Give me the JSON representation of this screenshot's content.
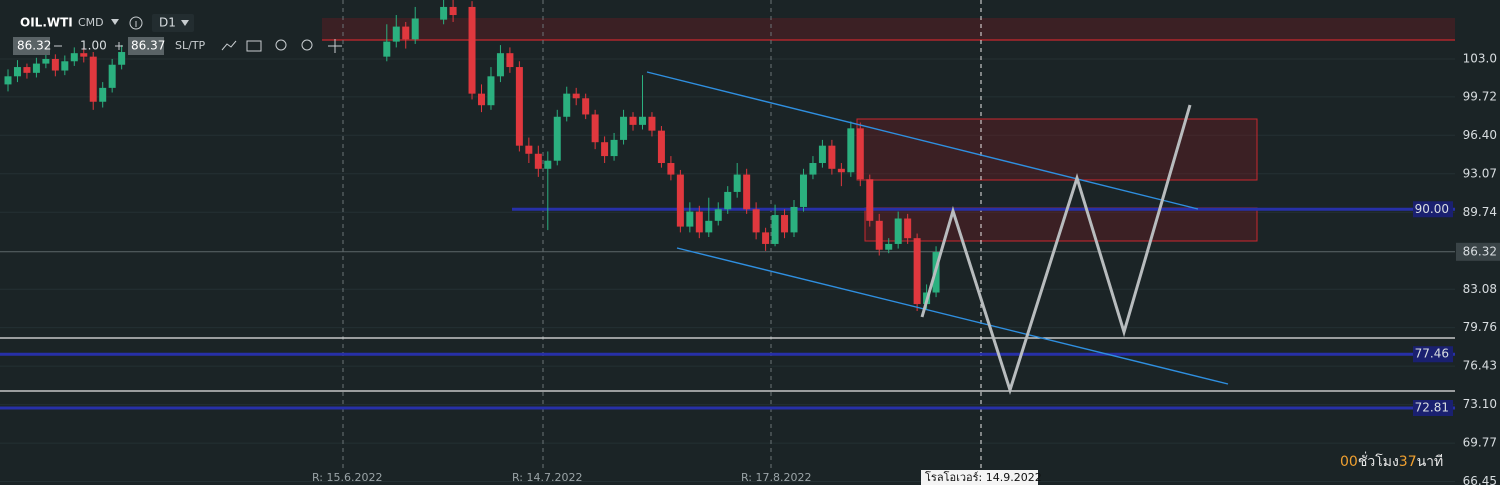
{
  "toolbar": {
    "symbol": "OIL.WTI",
    "market": "CMD",
    "timeframe": "D1",
    "bid": "86.32",
    "volume": "1.00",
    "ask": "86.37",
    "sltp": "SL/TP"
  },
  "chart_data": {
    "type": "candlestick",
    "open": [
      100.8,
      101.5,
      102.3,
      101.8,
      102.6,
      103.0,
      102.0,
      102.8,
      103.5,
      103.2,
      99.3,
      100.5,
      102.5,
      null,
      null,
      null,
      null,
      null,
      null,
      null,
      null,
      null,
      null,
      null,
      null,
      null,
      null,
      null,
      null,
      null,
      null,
      null,
      null,
      null,
      null,
      null,
      null,
      null,
      null,
      null,
      103.2,
      104.5,
      105.8,
      104.7,
      null,
      null,
      106.4,
      107.5,
      null,
      107.5,
      100.0,
      99.0,
      101.5,
      103.5,
      102.3,
      95.5,
      94.8,
      93.5,
      94.2,
      98.0,
      100.0,
      99.6,
      98.2,
      95.8,
      94.6,
      96.0,
      98.0,
      97.3,
      98.0,
      96.8,
      94.0,
      93.0,
      88.5,
      89.8,
      88.0,
      89.0,
      90.0,
      91.5,
      93.0,
      90.0,
      88.0,
      87.0,
      89.5,
      88.0,
      90.2,
      93.0,
      94.0,
      95.5,
      93.5,
      93.2,
      97.0,
      92.6,
      89.0,
      86.5,
      87.0,
      89.2,
      87.5,
      81.8,
      82.8
    ],
    "high": [
      102.1,
      102.9,
      102.6,
      103.1,
      103.6,
      103.4,
      103.3,
      104.0,
      104.0,
      103.6,
      101.0,
      103.0,
      104.2,
      null,
      null,
      null,
      null,
      null,
      null,
      null,
      null,
      null,
      null,
      null,
      null,
      null,
      null,
      null,
      null,
      null,
      null,
      null,
      null,
      null,
      null,
      null,
      null,
      null,
      null,
      null,
      106.0,
      106.8,
      106.2,
      107.5,
      null,
      null,
      108.5,
      108.2,
      null,
      108.0,
      100.8,
      102.3,
      104.2,
      104.0,
      102.8,
      96.2,
      95.5,
      95.0,
      98.6,
      100.6,
      100.5,
      100.0,
      98.6,
      96.3,
      96.6,
      98.6,
      98.4,
      101.6,
      98.4,
      97.2,
      94.6,
      93.4,
      90.6,
      90.3,
      91.0,
      90.6,
      92.0,
      94.0,
      93.5,
      90.6,
      88.4,
      90.4,
      90.0,
      90.8,
      93.5,
      94.6,
      96.0,
      96.0,
      94.0,
      97.6,
      97.5,
      93.0,
      89.6,
      87.5,
      89.8,
      89.6,
      87.9,
      83.5,
      86.8
    ],
    "low": [
      100.2,
      101.0,
      101.3,
      101.4,
      102.2,
      101.5,
      101.6,
      102.4,
      102.7,
      98.6,
      98.8,
      100.1,
      102.1,
      null,
      null,
      null,
      null,
      null,
      null,
      null,
      null,
      null,
      null,
      null,
      null,
      null,
      null,
      null,
      null,
      null,
      null,
      null,
      null,
      null,
      null,
      null,
      null,
      null,
      null,
      null,
      102.8,
      104.0,
      103.9,
      104.3,
      null,
      null,
      106.0,
      106.2,
      null,
      99.5,
      98.4,
      98.6,
      101.0,
      101.8,
      95.0,
      94.0,
      92.8,
      88.2,
      93.8,
      97.6,
      99.0,
      97.8,
      95.2,
      94.0,
      94.2,
      95.6,
      96.8,
      96.9,
      96.3,
      93.6,
      92.5,
      88.0,
      88.0,
      87.5,
      87.6,
      88.6,
      89.6,
      91.0,
      89.6,
      87.4,
      86.4,
      86.8,
      87.5,
      87.6,
      89.8,
      92.6,
      93.6,
      93.0,
      92.0,
      92.8,
      92.0,
      88.5,
      86.0,
      86.2,
      86.6,
      87.0,
      81.2,
      81.3,
      82.4
    ],
    "close": [
      101.5,
      102.3,
      101.8,
      102.6,
      103.0,
      102.0,
      102.8,
      103.5,
      103.2,
      99.3,
      100.5,
      102.5,
      103.6,
      null,
      null,
      null,
      null,
      null,
      null,
      null,
      null,
      null,
      null,
      null,
      null,
      null,
      null,
      null,
      null,
      null,
      null,
      null,
      null,
      null,
      null,
      null,
      null,
      null,
      null,
      null,
      104.5,
      105.8,
      104.7,
      106.5,
      null,
      null,
      107.5,
      106.8,
      null,
      100.0,
      99.0,
      101.5,
      103.5,
      102.3,
      95.5,
      94.8,
      93.5,
      94.2,
      98.0,
      100.0,
      99.6,
      98.2,
      95.8,
      94.6,
      96.0,
      98.0,
      97.3,
      98.0,
      96.8,
      94.0,
      93.0,
      88.5,
      89.8,
      88.0,
      89.0,
      90.0,
      91.5,
      93.0,
      90.0,
      88.0,
      87.0,
      89.5,
      88.0,
      90.2,
      93.0,
      94.0,
      95.5,
      93.5,
      93.2,
      97.0,
      92.6,
      89.0,
      86.5,
      87.0,
      89.2,
      87.5,
      81.8,
      82.8,
      86.3
    ],
    "up_color": "#2bb07f",
    "down_color": "#e0383e",
    "ylim": [
      66.15,
      108.1
    ],
    "yticks": [
      {
        "value": 103,
        "label": "103.0"
      },
      99.72,
      {
        "value": 96.4,
        "label": "96.40"
      },
      93.07,
      89.74,
      83.08,
      79.76,
      76.43,
      {
        "value": 73.1,
        "label": "73.10"
      },
      69.77,
      66.45
    ],
    "grid": true,
    "current_price": 86.32,
    "levels": [
      {
        "value": 90,
        "label": "90.00"
      },
      77.46,
      72.81
    ],
    "markers": [
      "R: 15.6.2022",
      "R: 14.7.2022",
      "R: 17.8.2022"
    ],
    "rollover": "โรลโอเวอร์: 14.9.2022"
  },
  "countdown": {
    "hours": "00",
    "hours_unit": "ชั่วโมง",
    "minutes": "37",
    "minutes_unit": "นาที"
  }
}
